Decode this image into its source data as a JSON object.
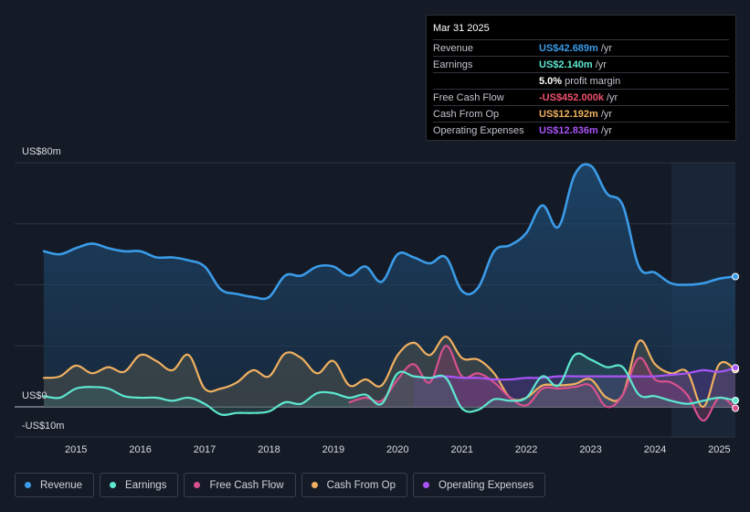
{
  "tooltip": {
    "date": "Mar 31 2025",
    "rows": [
      {
        "label": "Revenue",
        "value": "US$42.689m",
        "unit": "/yr",
        "color": "#3a9be8"
      },
      {
        "label": "Earnings",
        "value": "US$2.140m",
        "unit": "/yr",
        "color": "#5ee8d0"
      },
      {
        "label": "",
        "value": "5.0%",
        "unit": "profit margin",
        "color": "#ffffff"
      },
      {
        "label": "Free Cash Flow",
        "value": "-US$452.000k",
        "unit": "/yr",
        "color": "#f0506e"
      },
      {
        "label": "Cash From Op",
        "value": "US$12.192m",
        "unit": "/yr",
        "color": "#f0b060"
      },
      {
        "label": "Operating Expenses",
        "value": "US$12.836m",
        "unit": "/yr",
        "color": "#a855f7"
      }
    ]
  },
  "legend": [
    {
      "label": "Revenue",
      "color": "#3a9be8"
    },
    {
      "label": "Earnings",
      "color": "#5ee8d0"
    },
    {
      "label": "Free Cash Flow",
      "color": "#d8508e"
    },
    {
      "label": "Cash From Op",
      "color": "#f0b060"
    },
    {
      "label": "Operating Expenses",
      "color": "#a855f7"
    }
  ],
  "chart_data": {
    "type": "area",
    "title": "",
    "ylabel_top": "US$80m",
    "ylabel_zero": "US$0",
    "ylabel_bottom": "-US$10m",
    "ylim": [
      -10,
      80
    ],
    "xlim": [
      2014.5,
      2025.25
    ],
    "xticks": [
      "2015",
      "2016",
      "2017",
      "2018",
      "2019",
      "2020",
      "2021",
      "2022",
      "2023",
      "2024",
      "2025"
    ],
    "series": [
      {
        "name": "Revenue",
        "color": "#3a9be8",
        "x": [
          2014.5,
          2014.75,
          2015.0,
          2015.25,
          2015.5,
          2015.75,
          2016.0,
          2016.25,
          2016.5,
          2016.75,
          2017.0,
          2017.25,
          2017.5,
          2017.75,
          2018.0,
          2018.25,
          2018.5,
          2018.75,
          2019.0,
          2019.25,
          2019.5,
          2019.75,
          2020.0,
          2020.25,
          2020.5,
          2020.75,
          2021.0,
          2021.25,
          2021.5,
          2021.75,
          2022.0,
          2022.25,
          2022.5,
          2022.75,
          2023.0,
          2023.25,
          2023.5,
          2023.75,
          2024.0,
          2024.25,
          2024.5,
          2024.75,
          2025.0,
          2025.25
        ],
        "values": [
          51,
          50,
          52,
          53.5,
          52,
          51,
          51,
          49,
          49,
          48,
          46,
          38.5,
          37,
          36,
          36,
          43,
          43,
          46,
          46,
          43,
          46,
          41,
          50,
          49,
          47,
          49,
          38,
          39,
          51,
          53,
          57,
          66,
          59,
          76,
          79,
          70,
          66,
          46,
          44,
          40.5,
          40,
          40.5,
          42,
          42.7
        ]
      },
      {
        "name": "Earnings",
        "color": "#5ee8d0",
        "x": [
          2014.5,
          2014.75,
          2015.0,
          2015.25,
          2015.5,
          2015.75,
          2016.0,
          2016.25,
          2016.5,
          2016.75,
          2017.0,
          2017.25,
          2017.5,
          2017.75,
          2018.0,
          2018.25,
          2018.5,
          2018.75,
          2019.0,
          2019.25,
          2019.5,
          2019.75,
          2020.0,
          2020.25,
          2020.5,
          2020.75,
          2021.0,
          2021.25,
          2021.5,
          2021.75,
          2022.0,
          2022.25,
          2022.5,
          2022.75,
          2023.0,
          2023.25,
          2023.5,
          2023.75,
          2024.0,
          2024.25,
          2024.5,
          2024.75,
          2025.0,
          2025.25
        ],
        "values": [
          3.5,
          3,
          6,
          6.5,
          6,
          3.5,
          3,
          3,
          2,
          3,
          1,
          -2.5,
          -2,
          -2,
          -1.5,
          1.5,
          1,
          4.5,
          4.5,
          3,
          4,
          1,
          11,
          10,
          9.5,
          9.5,
          -0.5,
          -1,
          2.5,
          2,
          3,
          10,
          7,
          17,
          15.5,
          13,
          13,
          4,
          3.5,
          2,
          1,
          2,
          3,
          2.1
        ]
      },
      {
        "name": "Free Cash Flow",
        "color": "#d8508e",
        "x": [
          2019.25,
          2019.5,
          2019.75,
          2020.0,
          2020.25,
          2020.5,
          2020.75,
          2021.0,
          2021.25,
          2021.5,
          2021.75,
          2022.0,
          2022.25,
          2022.5,
          2022.75,
          2023.0,
          2023.25,
          2023.5,
          2023.75,
          2024.0,
          2024.25,
          2024.5,
          2024.75,
          2025.0,
          2025.25
        ],
        "values": [
          1.5,
          3,
          2,
          9,
          14,
          8,
          20,
          10,
          11,
          8,
          3,
          0.5,
          6,
          6,
          6.5,
          7,
          0,
          4,
          16,
          9,
          8,
          4,
          -4.5,
          3,
          -0.45
        ]
      },
      {
        "name": "Cash From Op",
        "color": "#f0b060",
        "x": [
          2014.5,
          2014.75,
          2015.0,
          2015.25,
          2015.5,
          2015.75,
          2016.0,
          2016.25,
          2016.5,
          2016.75,
          2017.0,
          2017.25,
          2017.5,
          2017.75,
          2018.0,
          2018.25,
          2018.5,
          2018.75,
          2019.0,
          2019.25,
          2019.5,
          2019.75,
          2020.0,
          2020.25,
          2020.5,
          2020.75,
          2021.0,
          2021.25,
          2021.5,
          2021.75,
          2022.0,
          2022.25,
          2022.5,
          2022.75,
          2023.0,
          2023.25,
          2023.5,
          2023.75,
          2024.0,
          2024.25,
          2024.5,
          2024.75,
          2025.0,
          2025.25
        ],
        "values": [
          9.5,
          10,
          13.5,
          11,
          13,
          11.5,
          17,
          15,
          12,
          17,
          6,
          6,
          8,
          12,
          10,
          17.5,
          16,
          11,
          15,
          7,
          9,
          7,
          17,
          21,
          17,
          23,
          16,
          15.5,
          11,
          3,
          3,
          7,
          7,
          7.5,
          9,
          3,
          4,
          21.5,
          14,
          11,
          11.5,
          0,
          14,
          12.2
        ]
      },
      {
        "name": "Operating Expenses",
        "color": "#a855f7",
        "x": [
          2020.25,
          2020.5,
          2020.75,
          2021.0,
          2021.25,
          2021.5,
          2021.75,
          2022.0,
          2022.25,
          2022.5,
          2022.75,
          2023.0,
          2023.25,
          2023.5,
          2023.75,
          2024.0,
          2024.25,
          2024.5,
          2024.75,
          2025.0,
          2025.25
        ],
        "values": [
          10,
          9.5,
          10,
          9.5,
          9.5,
          9,
          9,
          9.5,
          9.5,
          10,
          10,
          10,
          10,
          10,
          10,
          10,
          10.5,
          11,
          12,
          11.5,
          12.8
        ]
      }
    ]
  }
}
